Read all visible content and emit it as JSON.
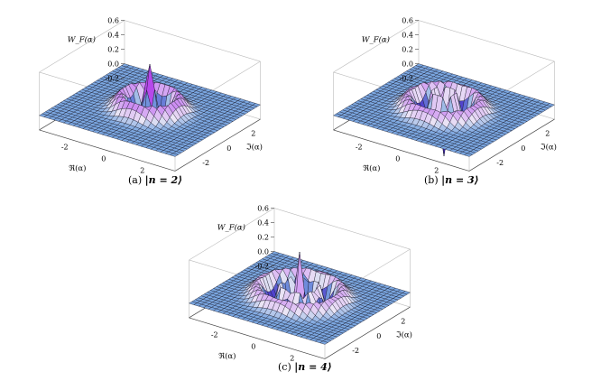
{
  "figure": {
    "panels": [
      {
        "id": "a",
        "caption_label": "(a)",
        "caption_state": "|n = 2⟩",
        "z_axis_label": "W_F(α)",
        "x_axis_label": "ℜ(α)",
        "y_axis_label": "ℑ(α)"
      },
      {
        "id": "b",
        "caption_label": "(b)",
        "caption_state": "|n = 3⟩",
        "z_axis_label": "W_F(α)",
        "x_axis_label": "ℜ(α)",
        "y_axis_label": "ℑ(α)"
      },
      {
        "id": "c",
        "caption_label": "(c)",
        "caption_state": "|n = 4⟩",
        "z_axis_label": "W_F(α)",
        "x_axis_label": "ℜ(α)",
        "y_axis_label": "ℑ(α)"
      }
    ]
  },
  "chart_data": [
    {
      "type": "surface",
      "function": "Wigner function of Fock state",
      "n": 2,
      "x_range": [
        -3.5,
        3.5
      ],
      "y_range": [
        -3.5,
        3.5
      ],
      "z_range": [
        -0.2,
        0.6
      ],
      "x_ticks": [
        "-2",
        "0",
        "2"
      ],
      "y_ticks": [
        "-2",
        "0",
        "2"
      ],
      "z_ticks": [
        "0.6",
        "0.4",
        "0.2",
        "0.0",
        "-0.2"
      ],
      "colors": {
        "low": "#7aa6e0",
        "mid": "#b03cf0",
        "high": "#ffcfb0"
      }
    },
    {
      "type": "surface",
      "function": "Wigner function of Fock state",
      "n": 3,
      "x_range": [
        -3.5,
        3.5
      ],
      "y_range": [
        -3.5,
        3.5
      ],
      "z_range": [
        -0.2,
        0.6
      ],
      "x_ticks": [
        "-2",
        "0",
        "2"
      ],
      "y_ticks": [
        "-2",
        "0",
        "2"
      ],
      "z_ticks": [
        "0.6",
        "0.4",
        "0.2",
        "0.0",
        "-0.2"
      ],
      "colors": {
        "low": "#7aa6e0",
        "mid": "#b03cf0",
        "high": "#ffcfb0"
      }
    },
    {
      "type": "surface",
      "function": "Wigner function of Fock state",
      "n": 4,
      "x_range": [
        -3.5,
        3.5
      ],
      "y_range": [
        -3.5,
        3.5
      ],
      "z_range": [
        -0.2,
        0.6
      ],
      "x_ticks": [
        "-2",
        "0",
        "2"
      ],
      "y_ticks": [
        "-2",
        "0",
        "2"
      ],
      "z_ticks": [
        "0.6",
        "0.4",
        "0.2",
        "0.0",
        "-0.2"
      ],
      "colors": {
        "low": "#7aa6e0",
        "mid": "#b03cf0",
        "high": "#ffcfb0"
      }
    }
  ]
}
